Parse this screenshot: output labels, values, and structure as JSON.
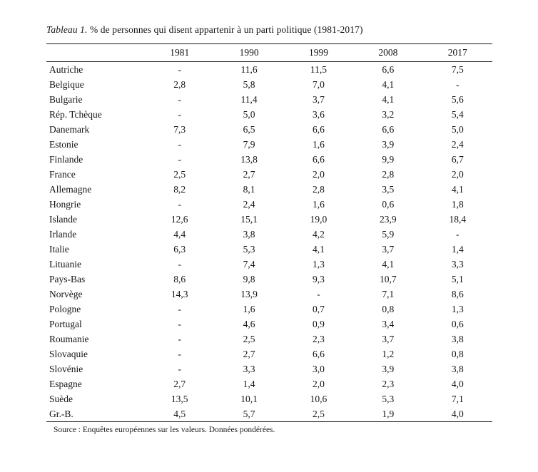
{
  "page": {
    "title_italic": "Tableau 1.",
    "title_rest": " % de personnes qui disent appartenir à un parti politique (1981-2017)",
    "source": "Source : Enquêtes européennes sur les valeurs. Données pondérées."
  },
  "table": {
    "columns": [
      "1981",
      "1990",
      "1999",
      "2008",
      "2017"
    ],
    "rows": [
      {
        "country": "Autriche",
        "values": [
          "-",
          "11,6",
          "11,5",
          "6,6",
          "7,5"
        ]
      },
      {
        "country": "Belgique",
        "values": [
          "2,8",
          "5,8",
          "7,0",
          "4,1",
          "-"
        ]
      },
      {
        "country": "Bulgarie",
        "values": [
          "-",
          "11,4",
          "3,7",
          "4,1",
          "5,6"
        ]
      },
      {
        "country": "Rép. Tchèque",
        "values": [
          "-",
          "5,0",
          "3,6",
          "3,2",
          "5,4"
        ]
      },
      {
        "country": "Danemark",
        "values": [
          "7,3",
          "6,5",
          "6,6",
          "6,6",
          "5,0"
        ]
      },
      {
        "country": "Estonie",
        "values": [
          "-",
          "7,9",
          "1,6",
          "3,9",
          "2,4"
        ]
      },
      {
        "country": "Finlande",
        "values": [
          "-",
          "13,8",
          "6,6",
          "9,9",
          "6,7"
        ]
      },
      {
        "country": "France",
        "values": [
          "2,5",
          "2,7",
          "2,0",
          "2,8",
          "2,0"
        ]
      },
      {
        "country": "Allemagne",
        "values": [
          "8,2",
          "8,1",
          "2,8",
          "3,5",
          "4,1"
        ]
      },
      {
        "country": "Hongrie",
        "values": [
          "-",
          "2,4",
          "1,6",
          "0,6",
          "1,8"
        ]
      },
      {
        "country": "Islande",
        "values": [
          "12,6",
          "15,1",
          "19,0",
          "23,9",
          "18,4"
        ]
      },
      {
        "country": "Irlande",
        "values": [
          "4,4",
          "3,8",
          "4,2",
          "5,9",
          "-"
        ]
      },
      {
        "country": "Italie",
        "values": [
          "6,3",
          "5,3",
          "4,1",
          "3,7",
          "1,4"
        ]
      },
      {
        "country": "Lituanie",
        "values": [
          "-",
          "7,4",
          "1,3",
          "4,1",
          "3,3"
        ]
      },
      {
        "country": "Pays-Bas",
        "values": [
          "8,6",
          "9,8",
          "9,3",
          "10,7",
          "5,1"
        ]
      },
      {
        "country": "Norvège",
        "values": [
          "14,3",
          "13,9",
          "-",
          "7,1",
          "8,6"
        ]
      },
      {
        "country": "Pologne",
        "values": [
          "-",
          "1,6",
          "0,7",
          "0,8",
          "1,3"
        ]
      },
      {
        "country": "Portugal",
        "values": [
          "-",
          "4,6",
          "0,9",
          "3,4",
          "0,6"
        ]
      },
      {
        "country": "Roumanie",
        "values": [
          "-",
          "2,5",
          "2,3",
          "3,7",
          "3,8"
        ]
      },
      {
        "country": "Slovaquie",
        "values": [
          "-",
          "2,7",
          "6,6",
          "1,2",
          "0,8"
        ]
      },
      {
        "country": "Slovénie",
        "values": [
          "-",
          "3,3",
          "3,0",
          "3,9",
          "3,8"
        ]
      },
      {
        "country": "Espagne",
        "values": [
          "2,7",
          "1,4",
          "2,0",
          "2,3",
          "4,0"
        ]
      },
      {
        "country": "Suède",
        "values": [
          "13,5",
          "10,1",
          "10,6",
          "5,3",
          "7,1"
        ]
      },
      {
        "country": "Gr.-B.",
        "values": [
          "4,5",
          "5,7",
          "2,5",
          "1,9",
          "4,0"
        ]
      }
    ]
  }
}
